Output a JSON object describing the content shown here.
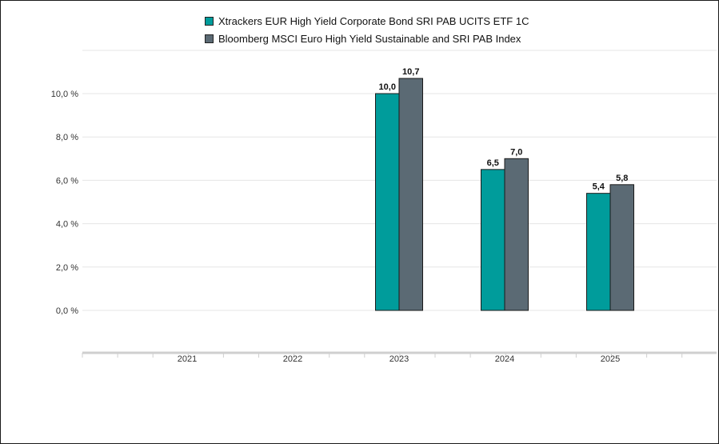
{
  "colors": {
    "series_0": "#009C9B",
    "series_1": "#5B6A74",
    "grid": "#e5e5e5",
    "axis": "#cfcfcf"
  },
  "chart_data": {
    "type": "bar",
    "categories": [
      "2021",
      "2022",
      "2023",
      "2024",
      "2025"
    ],
    "series": [
      {
        "name": "Xtrackers EUR High Yield Corporate Bond SRI PAB UCITS ETF 1C",
        "values": [
          null,
          null,
          10.0,
          6.5,
          5.4
        ],
        "labels": [
          "",
          "",
          "10,0",
          "6,5",
          "5,4"
        ]
      },
      {
        "name": "Bloomberg MSCI Euro High Yield Sustainable and SRI PAB Index",
        "values": [
          null,
          null,
          10.7,
          7.0,
          5.8
        ],
        "labels": [
          "",
          "",
          "10,7",
          "7,0",
          "5,8"
        ]
      }
    ],
    "ytick_values": [
      0,
      2,
      4,
      6,
      8,
      10
    ],
    "ytick_labels": [
      "0,0 %",
      "2,0 %",
      "4,0 %",
      "6,0 %",
      "8,0 %",
      "10,0 %"
    ],
    "ylim": [
      -2,
      12
    ],
    "grid": true,
    "legend_position": "top"
  }
}
